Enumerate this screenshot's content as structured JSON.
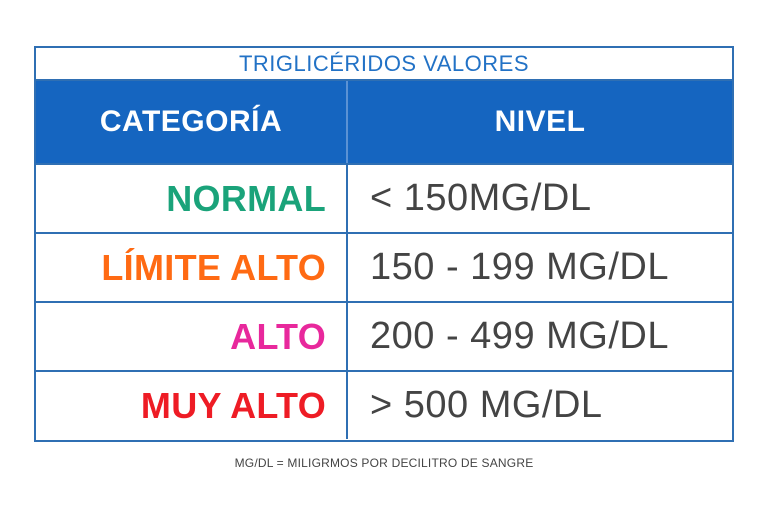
{
  "table": {
    "title": "TRIGLICÉRIDOS VALORES",
    "headers": {
      "category": "CATEGORÍA",
      "level": "NIVEL"
    },
    "rows": [
      {
        "category": "NORMAL",
        "level": "< 150MG/DL",
        "color": "#1aa37a"
      },
      {
        "category": "LÍMITE ALTO",
        "level": "150 - 199 MG/DL",
        "color": "#ff6a13"
      },
      {
        "category": "ALTO",
        "level": "200 - 499 MG/DL",
        "color": "#e8289c"
      },
      {
        "category": "MUY ALTO",
        "level": "> 500 MG/DL",
        "color": "#ee1c25"
      }
    ]
  },
  "footnote": "MG/DL = MILIGRMOS POR DECILITRO DE SANGRE",
  "colors": {
    "header_bg": "#1565c0",
    "border": "#2f6fb3",
    "title_text": "#2272c6",
    "level_text": "#444444"
  }
}
